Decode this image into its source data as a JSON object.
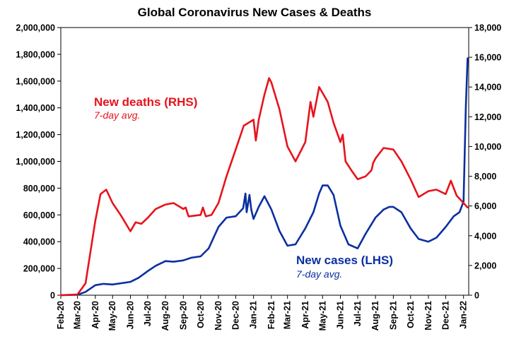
{
  "chart_data": {
    "type": "line",
    "title": "Global Coronavirus New Cases & Deaths",
    "x_tick_labels": [
      "Feb-20",
      "Mar-20",
      "Apr-20",
      "May-20",
      "Jun-20",
      "Jul-20",
      "Aug-20",
      "Sep-20",
      "Oct-20",
      "Nov-20",
      "Dec-20",
      "Jan-21",
      "Feb-21",
      "Mar-21",
      "Apr-21",
      "May-21",
      "Jun-21",
      "Jul-21",
      "Aug-21",
      "Sep-21",
      "Oct-21",
      "Nov-21",
      "Dec-21",
      "Jan-22"
    ],
    "x_range": [
      "2020-02-01",
      "2022-01-10"
    ],
    "y_left": {
      "ylim": [
        0,
        2000000
      ],
      "tick_labels": [
        "0",
        "200,000",
        "400,000",
        "600,000",
        "800,000",
        "1,000,000",
        "1,200,000",
        "1,400,000",
        "1,600,000",
        "1,800,000",
        "2,000,000"
      ]
    },
    "y_right": {
      "ylim": [
        0,
        18000
      ],
      "tick_labels": [
        "0",
        "2,000",
        "4,000",
        "6,000",
        "8,000",
        "10,000",
        "12,000",
        "14,000",
        "16,000",
        "18,000"
      ]
    },
    "grid": false,
    "legend": "none",
    "annotations": {
      "deaths_main": "New deaths (RHS)",
      "deaths_sub": "7-day avg.",
      "cases_main": "New cases (LHS)",
      "cases_sub": "7-day avg."
    },
    "colors": {
      "deaths": "#e8121b",
      "cases": "#0b2fa0"
    },
    "series": [
      {
        "key": "cases",
        "axis": "left",
        "x": [
          "2020-02-01",
          "2020-03-01",
          "2020-03-15",
          "2020-04-01",
          "2020-04-15",
          "2020-05-01",
          "2020-06-01",
          "2020-06-15",
          "2020-07-01",
          "2020-07-15",
          "2020-08-01",
          "2020-08-15",
          "2020-09-01",
          "2020-09-15",
          "2020-10-01",
          "2020-10-15",
          "2020-11-01",
          "2020-11-15",
          "2020-12-01",
          "2020-12-14",
          "2020-12-18",
          "2020-12-20",
          "2020-12-25",
          "2020-12-28",
          "2021-01-01",
          "2021-01-10",
          "2021-01-20",
          "2021-02-01",
          "2021-02-15",
          "2021-03-01",
          "2021-03-15",
          "2021-04-01",
          "2021-04-15",
          "2021-04-25",
          "2021-05-01",
          "2021-05-10",
          "2021-05-20",
          "2021-06-01",
          "2021-06-15",
          "2021-07-01",
          "2021-07-15",
          "2021-08-01",
          "2021-08-15",
          "2021-08-25",
          "2021-09-01",
          "2021-09-15",
          "2021-10-01",
          "2021-10-15",
          "2021-11-01",
          "2021-11-15",
          "2021-12-01",
          "2021-12-15",
          "2021-12-25",
          "2022-01-01",
          "2022-01-05",
          "2022-01-08"
        ],
        "values": [
          0,
          3000,
          25000,
          75000,
          85000,
          80000,
          100000,
          130000,
          180000,
          220000,
          255000,
          250000,
          260000,
          280000,
          290000,
          350000,
          510000,
          580000,
          590000,
          650000,
          760000,
          620000,
          750000,
          640000,
          570000,
          660000,
          740000,
          640000,
          480000,
          370000,
          380000,
          500000,
          620000,
          760000,
          820000,
          820000,
          750000,
          520000,
          380000,
          350000,
          460000,
          580000,
          640000,
          660000,
          660000,
          620000,
          500000,
          420000,
          400000,
          430000,
          510000,
          590000,
          620000,
          700000,
          1400000,
          1770000
        ]
      },
      {
        "key": "deaths",
        "axis": "right",
        "x": [
          "2020-02-01",
          "2020-03-01",
          "2020-03-15",
          "2020-04-01",
          "2020-04-10",
          "2020-04-20",
          "2020-05-01",
          "2020-05-15",
          "2020-06-01",
          "2020-06-10",
          "2020-06-20",
          "2020-07-01",
          "2020-07-15",
          "2020-08-01",
          "2020-08-15",
          "2020-09-01",
          "2020-09-05",
          "2020-09-10",
          "2020-10-01",
          "2020-10-05",
          "2020-10-10",
          "2020-10-20",
          "2020-11-01",
          "2020-11-15",
          "2020-12-01",
          "2020-12-15",
          "2021-01-01",
          "2021-01-05",
          "2021-01-10",
          "2021-01-20",
          "2021-01-28",
          "2021-02-01",
          "2021-02-15",
          "2021-03-01",
          "2021-03-15",
          "2021-04-01",
          "2021-04-10",
          "2021-04-15",
          "2021-04-25",
          "2021-05-01",
          "2021-05-10",
          "2021-05-20",
          "2021-06-01",
          "2021-06-05",
          "2021-06-10",
          "2021-06-20",
          "2021-07-01",
          "2021-07-15",
          "2021-07-25",
          "2021-07-28",
          "2021-08-01",
          "2021-08-05",
          "2021-08-15",
          "2021-09-01",
          "2021-09-15",
          "2021-10-01",
          "2021-10-15",
          "2021-11-01",
          "2021-11-15",
          "2021-12-01",
          "2021-12-10",
          "2021-12-20",
          "2022-01-01",
          "2022-01-08"
        ],
        "values": [
          0,
          50,
          800,
          5000,
          6800,
          7100,
          6200,
          5400,
          4300,
          4900,
          4800,
          5200,
          5800,
          6100,
          6200,
          5800,
          5900,
          5300,
          5400,
          5900,
          5300,
          5400,
          6200,
          8000,
          9800,
          11400,
          11800,
          10400,
          11800,
          13500,
          14600,
          14300,
          12500,
          10000,
          9000,
          10300,
          13000,
          12000,
          14000,
          13600,
          13000,
          11600,
          10300,
          10800,
          9000,
          8400,
          7800,
          8000,
          8400,
          8900,
          9200,
          9400,
          9900,
          9800,
          9000,
          7800,
          6600,
          7000,
          7100,
          6800,
          7700,
          6700,
          6200,
          5900
        ]
      }
    ]
  }
}
